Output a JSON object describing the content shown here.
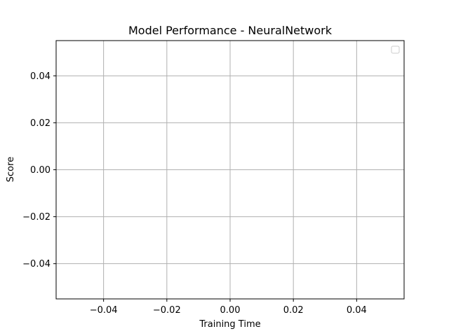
{
  "chart_data": {
    "type": "line",
    "title": "Model Performance - NeuralNetwork",
    "xlabel": "Training Time",
    "ylabel": "Score",
    "xlim": [
      -0.055,
      0.055
    ],
    "ylim": [
      -0.055,
      0.055
    ],
    "x_ticks": [
      -0.04,
      -0.02,
      0.0,
      0.02,
      0.04
    ],
    "y_ticks": [
      -0.04,
      -0.02,
      0.0,
      0.02,
      0.04
    ],
    "x_tick_labels": [
      "−0.04",
      "−0.02",
      "0.00",
      "0.02",
      "0.04"
    ],
    "y_tick_labels": [
      "−0.04",
      "−0.02",
      "0.00",
      "0.02",
      "0.04"
    ],
    "series": [],
    "grid": true,
    "legend": {
      "position": "top-right",
      "entries": []
    },
    "colors": {
      "grid": "#b0b0b0",
      "axes": "#000000",
      "legend_border": "#cccccc"
    }
  }
}
